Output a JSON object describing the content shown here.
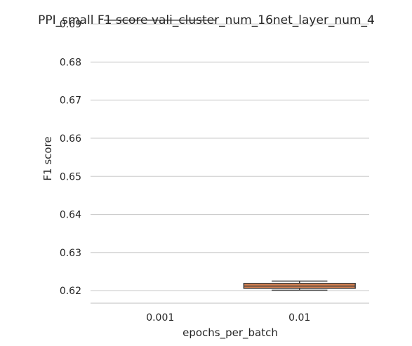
{
  "chart_data": {
    "type": "box",
    "title": "PPI_small F1 score vali_cluster_num_16net_layer_num_4",
    "xlabel": "epochs_per_batch",
    "ylabel": "F1 score",
    "categories": [
      "0.001",
      "0.01"
    ],
    "ylim": [
      0.6167,
      0.6915
    ],
    "yticks": [
      0.62,
      0.63,
      0.64,
      0.65,
      0.66,
      0.67,
      0.68,
      0.69
    ],
    "ytick_labels": [
      "0.62",
      "0.63",
      "0.64",
      "0.65",
      "0.66",
      "0.67",
      "0.68",
      "0.69"
    ],
    "grid": "horizontal",
    "boxes": [
      {
        "category": "0.001",
        "min": 0.691,
        "q1": 0.691,
        "median": 0.691,
        "q3": 0.691,
        "max": 0.691,
        "color": "#4c72b0"
      },
      {
        "category": "0.01",
        "min": 0.6201,
        "q1": 0.6206,
        "median": 0.6212,
        "q3": 0.6219,
        "max": 0.6225,
        "color": "#dd8452"
      }
    ]
  }
}
